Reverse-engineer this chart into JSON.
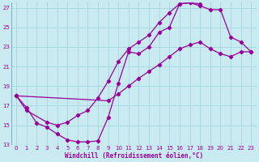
{
  "xlabel": "Windchill (Refroidissement éolien,°C)",
  "bg_color": "#c8eaf0",
  "grid_color": "#a8d8e0",
  "line_color": "#990099",
  "xlim": [
    -0.5,
    23.5
  ],
  "ylim": [
    13,
    27.5
  ],
  "xticks": [
    0,
    1,
    2,
    3,
    4,
    5,
    6,
    7,
    8,
    9,
    10,
    11,
    12,
    13,
    14,
    15,
    16,
    17,
    18,
    19,
    20,
    21,
    22,
    23
  ],
  "yticks": [
    13,
    15,
    17,
    19,
    21,
    23,
    25,
    27
  ],
  "curve1_x": [
    0,
    1,
    2,
    3,
    4,
    5,
    6,
    7,
    8,
    9,
    10,
    11,
    12,
    13,
    14,
    15,
    16,
    17,
    18
  ],
  "curve1_y": [
    18.0,
    16.8,
    15.2,
    14.8,
    14.1,
    13.5,
    13.3,
    13.3,
    13.4,
    15.8,
    19.3,
    22.5,
    22.3,
    23.0,
    24.5,
    25.0,
    27.4,
    27.5,
    27.4
  ],
  "curve2_x": [
    0,
    9,
    10,
    11,
    12,
    13,
    14,
    15,
    16,
    17,
    18,
    19,
    20,
    21,
    22,
    23
  ],
  "curve2_y": [
    18.0,
    17.5,
    18.2,
    19.0,
    19.8,
    20.5,
    21.2,
    22.0,
    22.8,
    23.2,
    23.5,
    22.8,
    22.3,
    22.0,
    22.5,
    22.5
  ],
  "curve3_x": [
    0,
    1,
    3,
    4,
    5,
    6,
    7,
    8,
    9,
    10,
    11,
    12,
    13,
    14,
    15,
    16,
    17,
    18,
    19,
    20,
    21,
    22,
    23
  ],
  "curve3_y": [
    18.0,
    16.5,
    15.3,
    15.0,
    15.3,
    16.0,
    16.5,
    17.8,
    19.5,
    21.5,
    22.8,
    23.5,
    24.2,
    25.5,
    26.5,
    27.4,
    27.5,
    27.2,
    26.8,
    26.8,
    24.0,
    23.5,
    22.5
  ]
}
